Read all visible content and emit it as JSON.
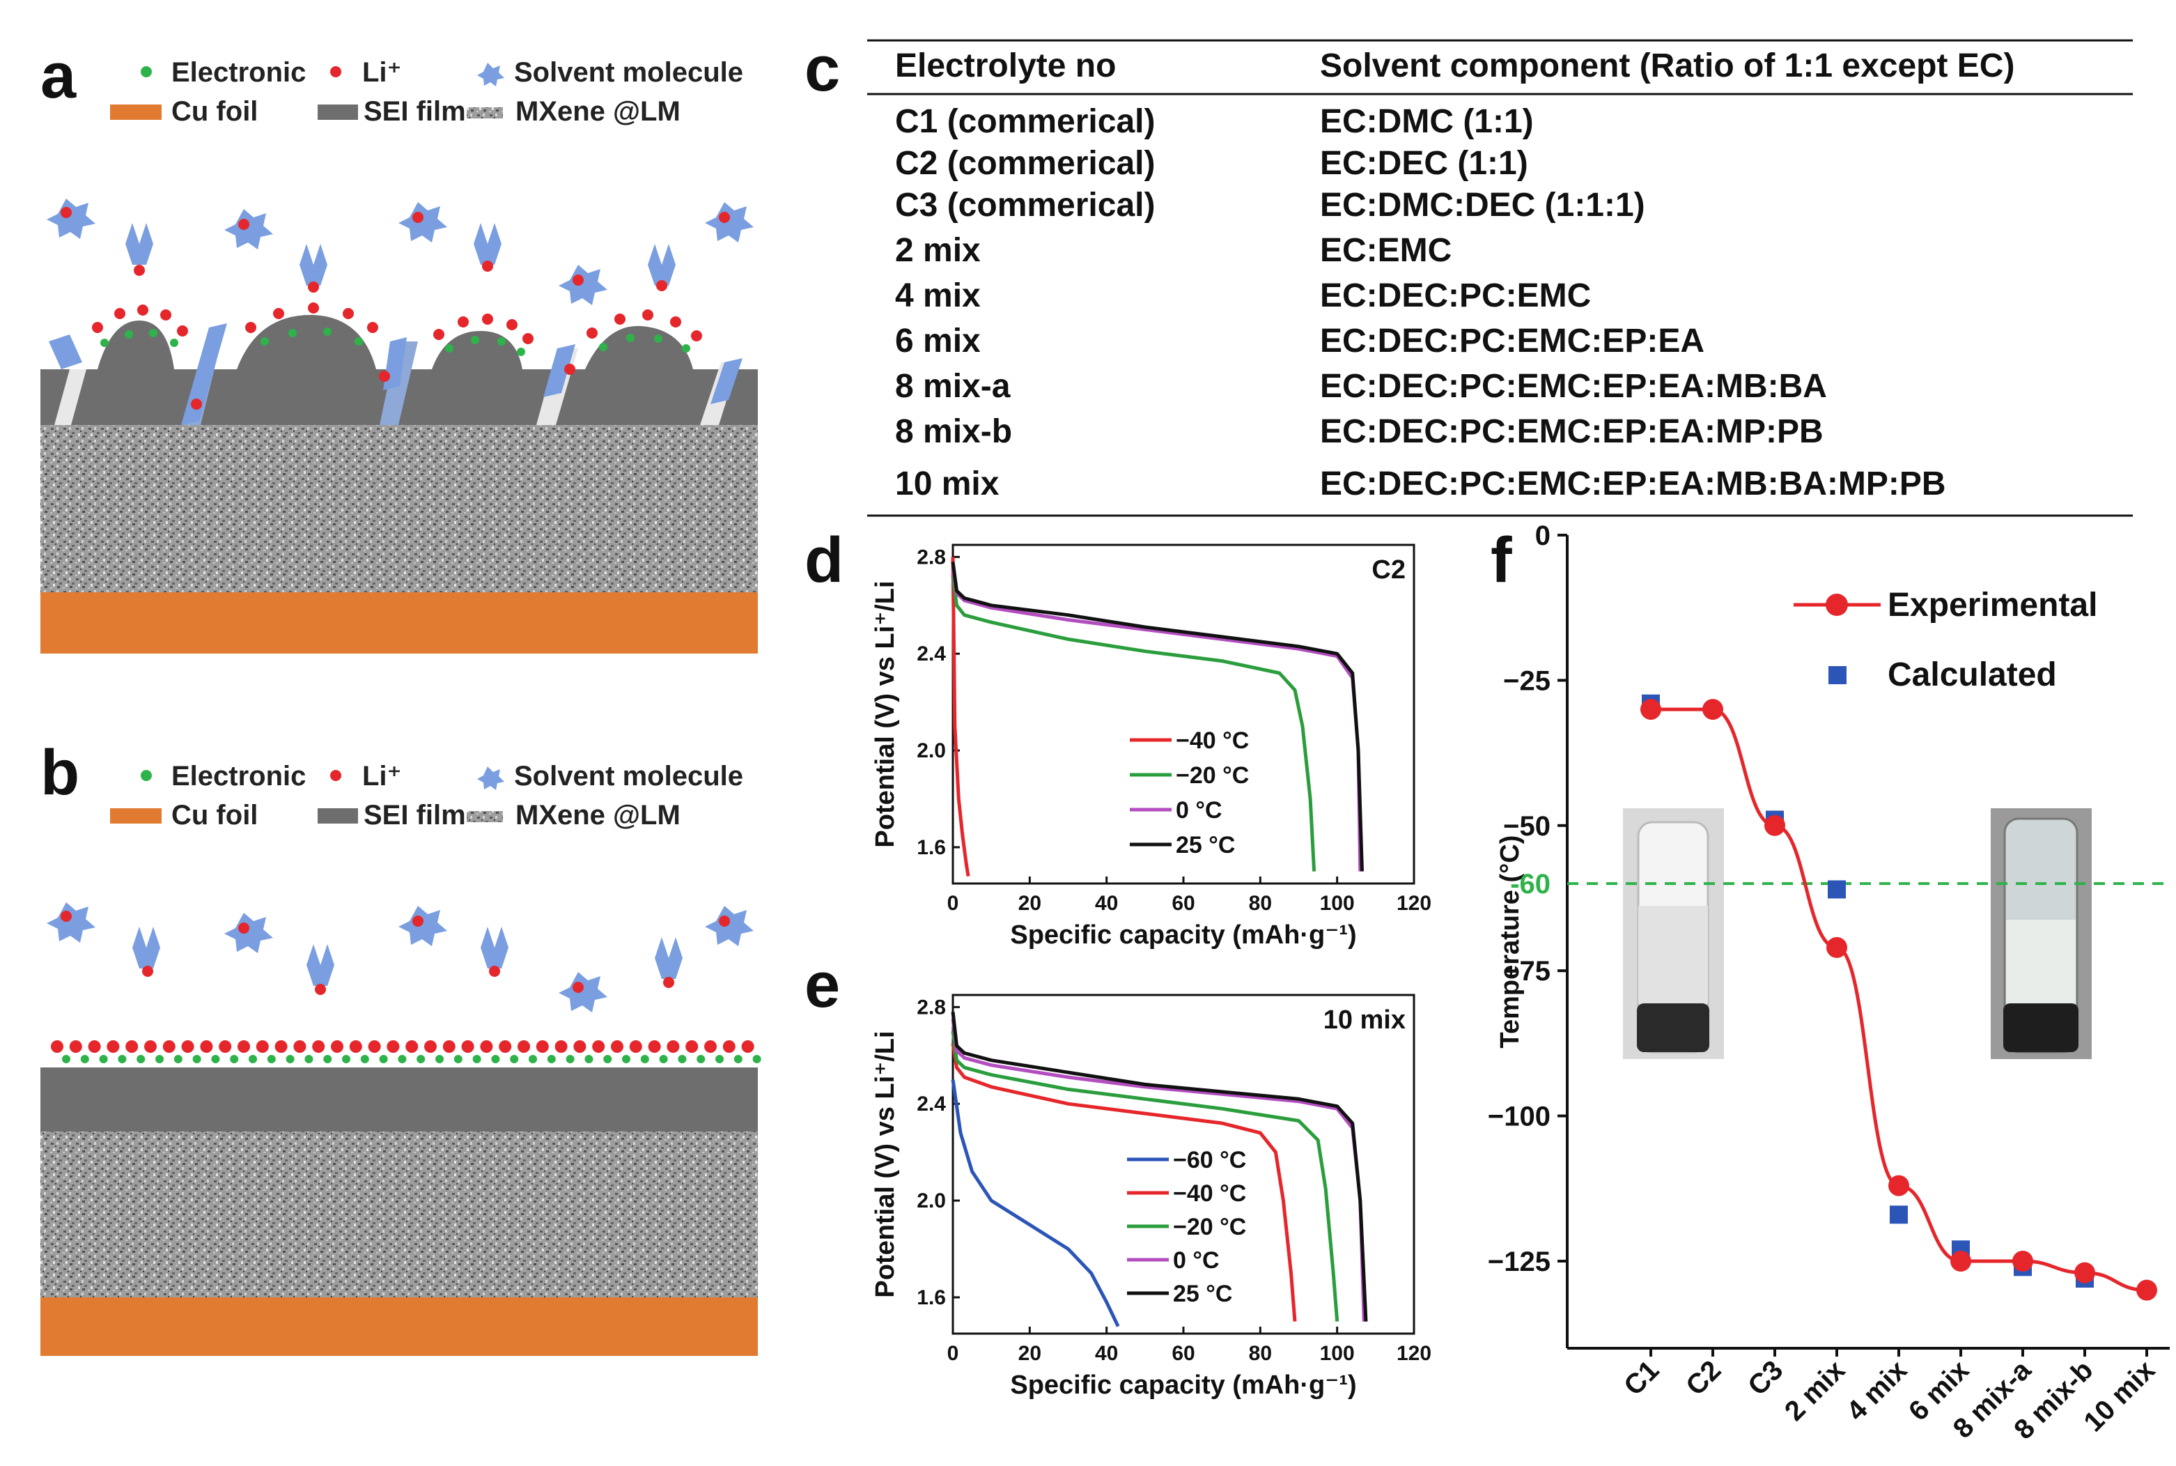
{
  "panel_labels": {
    "a": "a",
    "b": "b",
    "c": "c",
    "d": "d",
    "e": "e",
    "f": "f"
  },
  "schematic": {
    "legend_electronic": "Electronic",
    "legend_li": "Li⁺",
    "legend_solvent": "Solvent molecule",
    "legend_cu": "Cu foil",
    "legend_sei": "SEI film",
    "legend_mxene": "MXene @LM",
    "colors": {
      "electronic": "#2db34a",
      "li": "#e5262b",
      "solvent": "#7a9ee0",
      "cu": "#e07b31",
      "sei": "#6e6e6e"
    }
  },
  "table": {
    "headers": [
      "Electrolyte no",
      "Solvent component (Ratio of 1:1 except EC)"
    ],
    "rows": [
      [
        "C1 (commerical)",
        "EC:DMC (1:1)"
      ],
      [
        "C2 (commerical)",
        "EC:DEC (1:1)"
      ],
      [
        "C3 (commerical)",
        "EC:DMC:DEC (1:1:1)"
      ],
      [
        "2 mix",
        "EC:EMC"
      ],
      [
        "4 mix",
        "EC:DEC:PC:EMC"
      ],
      [
        "6 mix",
        "EC:DEC:PC:EMC:EP:EA"
      ],
      [
        "8 mix-a",
        "EC:DEC:PC:EMC:EP:EA:MB:BA"
      ],
      [
        "8 mix-b",
        "EC:DEC:PC:EMC:EP:EA:MP:PB"
      ],
      [
        "10 mix",
        "EC:DEC:PC:EMC:EP:EA:MB:BA:MP:PB"
      ]
    ]
  },
  "chart_data": [
    {
      "type": "line",
      "panel": "d",
      "title": "C2",
      "xlabel": "Specific capacity (mAh·g⁻¹)",
      "ylabel": "Potential (V) vs Li⁺/Li",
      "xlim": [
        0,
        120
      ],
      "ylim": [
        1.45,
        2.85
      ],
      "xticks": [
        "0",
        "20",
        "40",
        "60",
        "80",
        "100",
        "120"
      ],
      "yticks": [
        "1.6",
        "2.0",
        "2.4",
        "2.8"
      ],
      "series": [
        {
          "name": "−40 °C",
          "color": "#e5262b",
          "x": [
            0,
            0.5,
            1.5,
            2.5,
            3.5,
            4
          ],
          "y": [
            2.8,
            2.1,
            1.8,
            1.65,
            1.53,
            1.48
          ]
        },
        {
          "name": "−20 °C",
          "color": "#2a9d3c",
          "x": [
            0,
            1,
            3,
            10,
            30,
            50,
            70,
            85,
            89,
            91,
            93,
            94
          ],
          "y": [
            2.72,
            2.6,
            2.56,
            2.53,
            2.46,
            2.41,
            2.37,
            2.32,
            2.25,
            2.1,
            1.8,
            1.5
          ]
        },
        {
          "name": "0 °C",
          "color": "#b34dc0",
          "x": [
            0,
            1,
            3,
            10,
            30,
            50,
            70,
            90,
            100,
            104,
            105.5,
            106
          ],
          "y": [
            2.75,
            2.65,
            2.62,
            2.59,
            2.54,
            2.5,
            2.46,
            2.42,
            2.39,
            2.3,
            2.0,
            1.5
          ]
        },
        {
          "name": "25 °C",
          "color": "#111111",
          "x": [
            0,
            1,
            3,
            10,
            30,
            50,
            70,
            90,
            100,
            104,
            105.5,
            106.5
          ],
          "y": [
            2.78,
            2.66,
            2.63,
            2.6,
            2.56,
            2.51,
            2.47,
            2.43,
            2.4,
            2.32,
            2.0,
            1.5
          ]
        }
      ]
    },
    {
      "type": "line",
      "panel": "e",
      "title": "10 mix",
      "xlabel": "Specific capacity (mAh·g⁻¹)",
      "ylabel": "Potential (V) vs Li⁺/Li",
      "xlim": [
        0,
        120
      ],
      "ylim": [
        1.45,
        2.85
      ],
      "xticks": [
        "0",
        "20",
        "40",
        "60",
        "80",
        "100",
        "120"
      ],
      "yticks": [
        "1.6",
        "2.0",
        "2.4",
        "2.8"
      ],
      "series": [
        {
          "name": "−60 °C",
          "color": "#2c55b8",
          "x": [
            0,
            2,
            5,
            10,
            20,
            30,
            36,
            40,
            43
          ],
          "y": [
            2.5,
            2.28,
            2.12,
            2.0,
            1.9,
            1.8,
            1.7,
            1.58,
            1.48
          ]
        },
        {
          "name": "−40 °C",
          "color": "#e5262b",
          "x": [
            0,
            1,
            3,
            10,
            30,
            50,
            70,
            80,
            84,
            86,
            88,
            89
          ],
          "y": [
            2.65,
            2.55,
            2.51,
            2.47,
            2.4,
            2.36,
            2.32,
            2.28,
            2.2,
            2.0,
            1.7,
            1.5
          ]
        },
        {
          "name": "−20 °C",
          "color": "#2a9d3c",
          "x": [
            0,
            1,
            3,
            10,
            30,
            50,
            70,
            90,
            95,
            97,
            99,
            100
          ],
          "y": [
            2.7,
            2.58,
            2.55,
            2.52,
            2.46,
            2.42,
            2.38,
            2.33,
            2.25,
            2.05,
            1.7,
            1.5
          ]
        },
        {
          "name": "0 °C",
          "color": "#b34dc0",
          "x": [
            0,
            1,
            3,
            10,
            30,
            50,
            70,
            90,
            100,
            104,
            106,
            107
          ],
          "y": [
            2.75,
            2.62,
            2.59,
            2.56,
            2.51,
            2.47,
            2.44,
            2.41,
            2.38,
            2.3,
            2.0,
            1.5
          ]
        },
        {
          "name": "25 °C",
          "color": "#111111",
          "x": [
            0,
            1,
            3,
            10,
            30,
            50,
            70,
            90,
            100,
            104,
            106,
            107.5
          ],
          "y": [
            2.78,
            2.64,
            2.61,
            2.58,
            2.53,
            2.48,
            2.45,
            2.42,
            2.39,
            2.32,
            2.0,
            1.5
          ]
        }
      ]
    },
    {
      "type": "line",
      "panel": "f",
      "title": "",
      "xlabel": "",
      "ylabel": "Temperature (°C)",
      "ylim": [
        -140,
        0
      ],
      "yticks": [
        "0",
        "−25",
        "−50",
        "−75",
        "−100",
        "−125"
      ],
      "reference_line": {
        "y": -60,
        "label": "-60",
        "color": "#2db34a"
      },
      "categories": [
        "C1",
        "C2",
        "C3",
        "2 mix",
        "4 mix",
        "6 mix",
        "8 mix-a",
        "8 mix-b",
        "10 mix"
      ],
      "series": [
        {
          "name": "Experimental",
          "color": "#e5262b",
          "values": [
            -30,
            -30,
            -50,
            -71,
            -112,
            -125,
            -125,
            -127,
            -130
          ]
        },
        {
          "name": "Calculated",
          "color": "#2c55b8",
          "values": [
            -29,
            null,
            -49,
            -61,
            -117,
            -123,
            -126,
            -128,
            null
          ]
        }
      ]
    }
  ]
}
